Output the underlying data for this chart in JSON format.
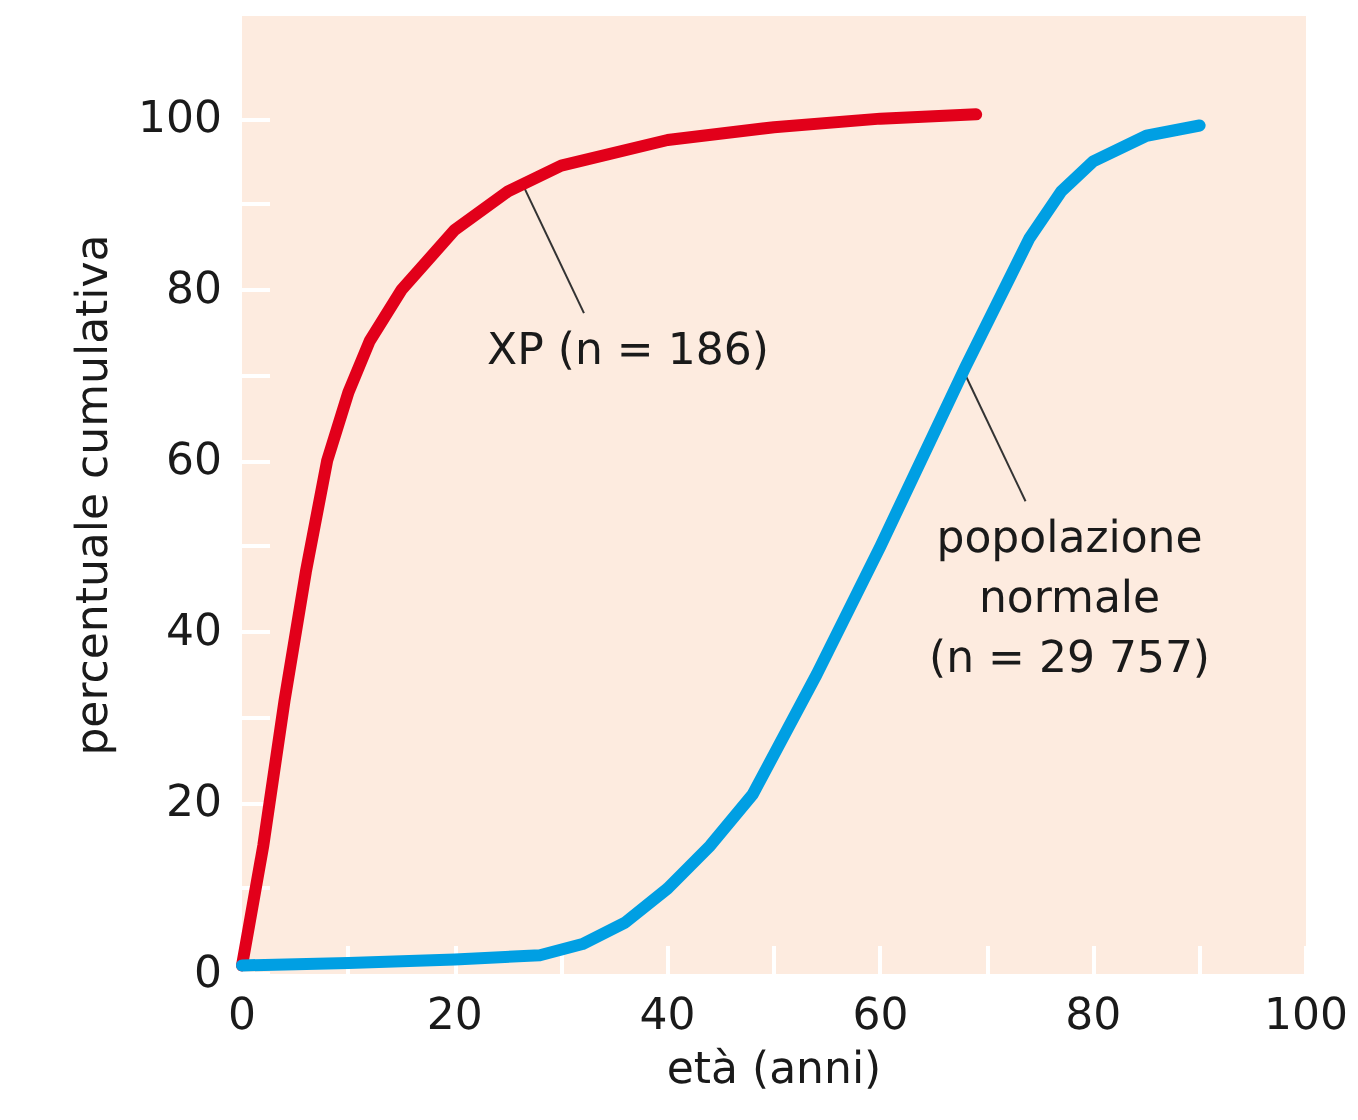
{
  "chart_data": {
    "type": "line",
    "xlabel": "età (anni)",
    "ylabel": "percentuale cumulativa",
    "xlim": [
      0,
      100
    ],
    "ylim": [
      0,
      112
    ],
    "xticks": [
      0,
      {
        "value": 10,
        "label": null
      },
      20,
      {
        "value": 30,
        "label": null
      },
      40,
      {
        "value": 50,
        "label": null
      },
      60,
      {
        "value": 70,
        "label": null
      },
      80,
      {
        "value": 90,
        "label": null
      },
      100
    ],
    "yticks": [
      0,
      {
        "value": 10,
        "label": null
      },
      20,
      {
        "value": 30,
        "label": null
      },
      40,
      {
        "value": 50,
        "label": null
      },
      60,
      {
        "value": 70,
        "label": null
      },
      80,
      {
        "value": 90,
        "label": null
      },
      100
    ],
    "grid": false,
    "marker": "none",
    "line_style": "solid",
    "series": [
      {
        "color": "#e2001a",
        "x": [
          0,
          2,
          4,
          6,
          8,
          10,
          12,
          15,
          20,
          25,
          30,
          40,
          50,
          60,
          69
        ],
        "values": [
          1,
          15,
          32,
          47,
          60,
          68,
          74,
          80,
          87,
          91.5,
          94.5,
          97.5,
          99,
          100,
          100.5
        ]
      },
      {
        "color": "#009fe3",
        "x": [
          0,
          10,
          20,
          28,
          32,
          36,
          40,
          44,
          48,
          54,
          60,
          68,
          74,
          77,
          80,
          85,
          90
        ],
        "values": [
          1,
          1.3,
          1.7,
          2.2,
          3.5,
          6,
          10,
          15,
          21,
          35,
          50,
          71,
          86,
          91.5,
          95,
          98,
          99.2
        ]
      }
    ],
    "annotations": [
      {
        "text": "XP (n = 186)",
        "x": 26.5,
        "y": 92
      },
      {
        "text": "popolazione\nnormale\n(n = 29 757)",
        "x": 68,
        "y": 70
      }
    ]
  }
}
